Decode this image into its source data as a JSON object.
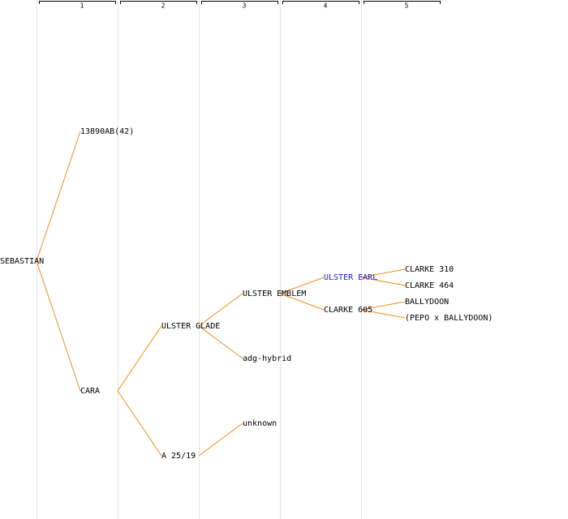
{
  "columns": [
    "1",
    "2",
    "3",
    "4",
    "5"
  ],
  "nodes": [
    {
      "label": "SEBASTIAN"
    },
    {
      "label": "13890AB(42)"
    },
    {
      "label": "CARA"
    },
    {
      "label": "ULSTER GLADE"
    },
    {
      "label": "A 25/19"
    },
    {
      "label": "ULSTER EMBLEM"
    },
    {
      "label": "adg-hybrid"
    },
    {
      "label": "unknown"
    },
    {
      "label": "ULSTER EARL"
    },
    {
      "label": "CLARKE 605"
    },
    {
      "label": "CLARKE 310"
    },
    {
      "label": "CLARKE 464"
    },
    {
      "label": "BALLYDOON"
    },
    {
      "label": "(PEPO x BALLYDOON)"
    }
  ]
}
